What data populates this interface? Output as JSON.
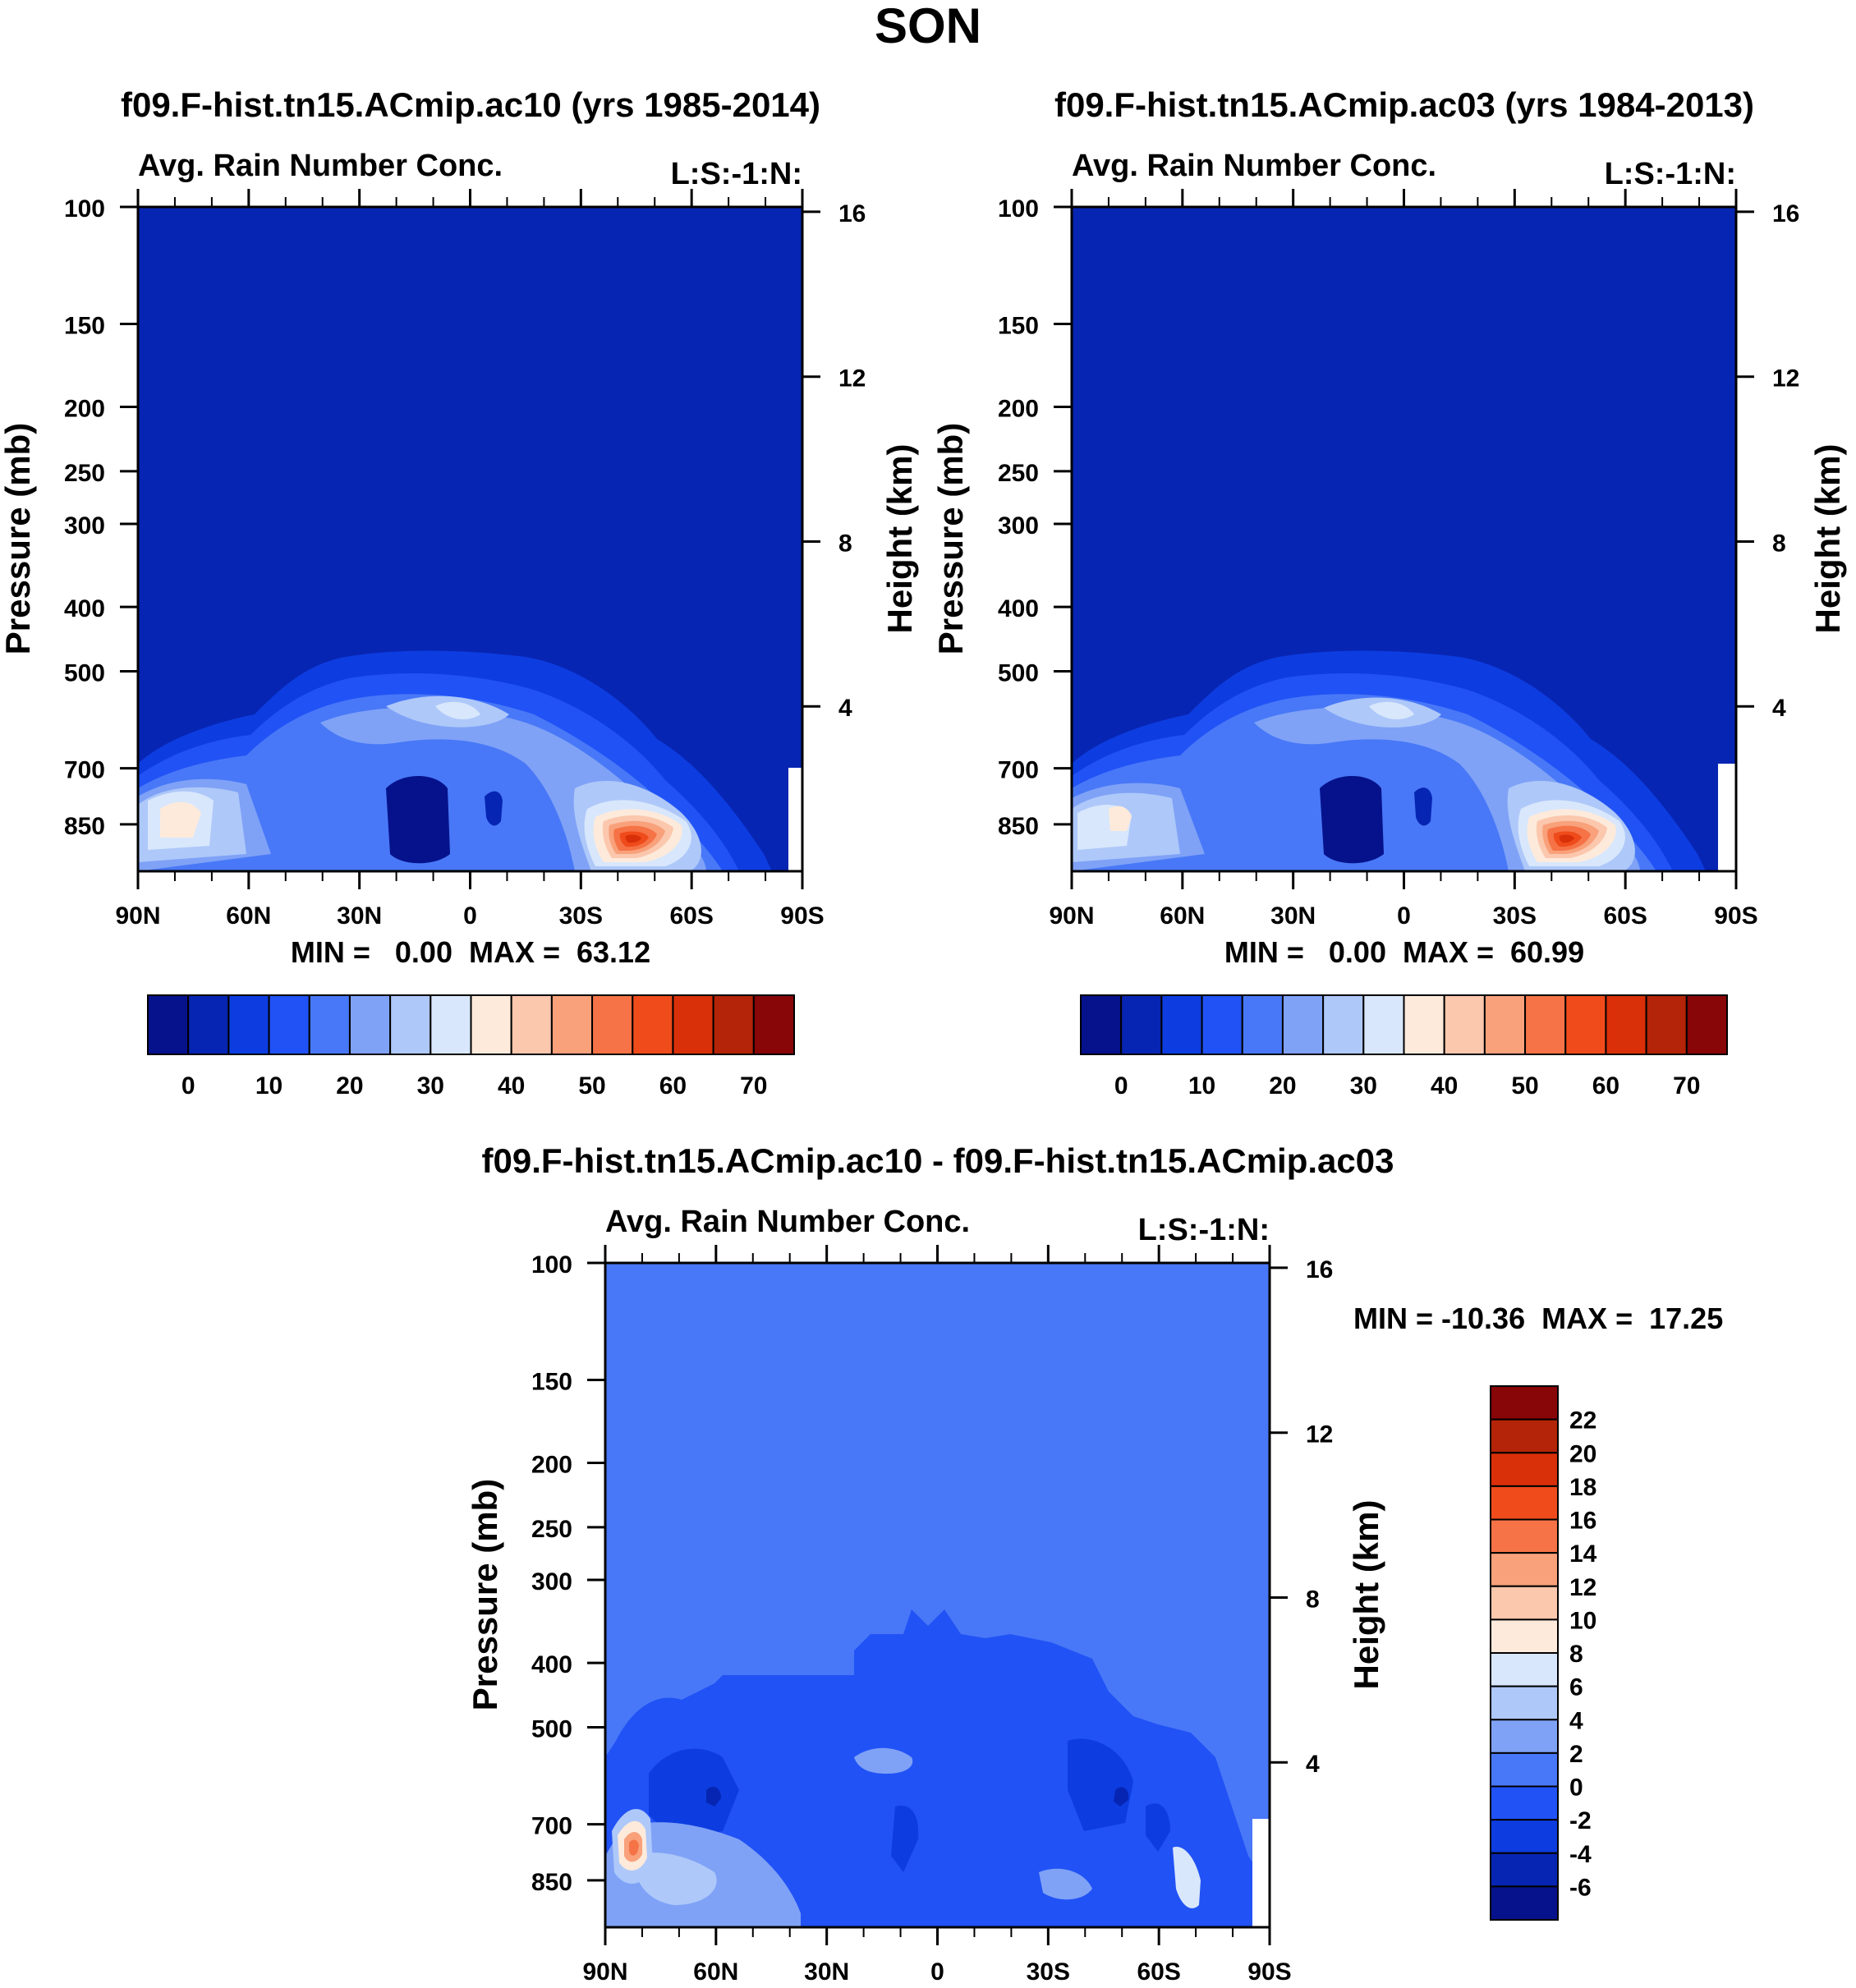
{
  "page_title": "SON",
  "chart_data": [
    {
      "type": "heatmap",
      "title": "f09.F-hist.tn15.ACmip.ac10 (yrs 1985-2014)",
      "left_label": "Avg. Rain Number Conc.",
      "right_label": "L:S:-1:N:",
      "ylabel": "Pressure (mb)",
      "y2label": "Height (km)",
      "yticks": [
        100,
        150,
        200,
        250,
        300,
        400,
        500,
        700,
        850
      ],
      "y2ticks": [
        16,
        12,
        8,
        4
      ],
      "xticks": [
        "90N",
        "60N",
        "30N",
        "0",
        "30S",
        "60S",
        "90S"
      ],
      "stats": "MIN =   0.00  MAX =  63.12",
      "min": 0.0,
      "max": 63.12,
      "colorbar_labels": [
        "0",
        "10",
        "20",
        "30",
        "40",
        "50",
        "60",
        "70"
      ],
      "colors": [
        "#06128c",
        "#0725b3",
        "#0d3de0",
        "#2152f5",
        "#4878f7",
        "#7fa2f7",
        "#aec8f9",
        "#d8e7fc",
        "#fdeadb",
        "#fbc7ad",
        "#f8a17b",
        "#f57346",
        "#ef4b1b",
        "#d9300a",
        "#b42408",
        "#880508"
      ]
    },
    {
      "type": "heatmap",
      "title": "f09.F-hist.tn15.ACmip.ac03 (yrs 1984-2013)",
      "left_label": "Avg. Rain Number Conc.",
      "right_label": "L:S:-1:N:",
      "ylabel": "Pressure (mb)",
      "y2label": "Height (km)",
      "yticks": [
        100,
        150,
        200,
        250,
        300,
        400,
        500,
        700,
        850
      ],
      "y2ticks": [
        16,
        12,
        8,
        4
      ],
      "xticks": [
        "90N",
        "60N",
        "30N",
        "0",
        "30S",
        "60S",
        "90S"
      ],
      "stats": "MIN =   0.00  MAX =  60.99",
      "min": 0.0,
      "max": 60.99,
      "colorbar_labels": [
        "0",
        "10",
        "20",
        "30",
        "40",
        "50",
        "60",
        "70"
      ],
      "colors": [
        "#06128c",
        "#0725b3",
        "#0d3de0",
        "#2152f5",
        "#4878f7",
        "#7fa2f7",
        "#aec8f9",
        "#d8e7fc",
        "#fdeadb",
        "#fbc7ad",
        "#f8a17b",
        "#f57346",
        "#ef4b1b",
        "#d9300a",
        "#b42408",
        "#880508"
      ]
    },
    {
      "type": "heatmap",
      "title": "f09.F-hist.tn15.ACmip.ac10 - f09.F-hist.tn15.ACmip.ac03",
      "left_label": "Avg. Rain Number Conc.",
      "right_label": "L:S:-1:N:",
      "ylabel": "Pressure (mb)",
      "y2label": "Height (km)",
      "yticks": [
        100,
        150,
        200,
        250,
        300,
        400,
        500,
        700,
        850
      ],
      "y2ticks": [
        16,
        12,
        8,
        4
      ],
      "xticks": [
        "90N",
        "60N",
        "30N",
        "0",
        "30S",
        "60S",
        "90S"
      ],
      "stats": "MIN = -10.36  MAX =  17.25",
      "min": -10.36,
      "max": 17.25,
      "colorbar_labels": [
        "22",
        "20",
        "18",
        "16",
        "14",
        "12",
        "10",
        "8",
        "6",
        "4",
        "2",
        "0",
        "-2",
        "-4",
        "-6"
      ],
      "colors": [
        "#880508",
        "#b42408",
        "#d9300a",
        "#ef4b1b",
        "#f57346",
        "#f8a17b",
        "#fbc7ad",
        "#fdeadb",
        "#d8e7fc",
        "#aec8f9",
        "#7fa2f7",
        "#4878f7",
        "#2152f5",
        "#0d3de0",
        "#0725b3",
        "#06128c"
      ]
    }
  ]
}
